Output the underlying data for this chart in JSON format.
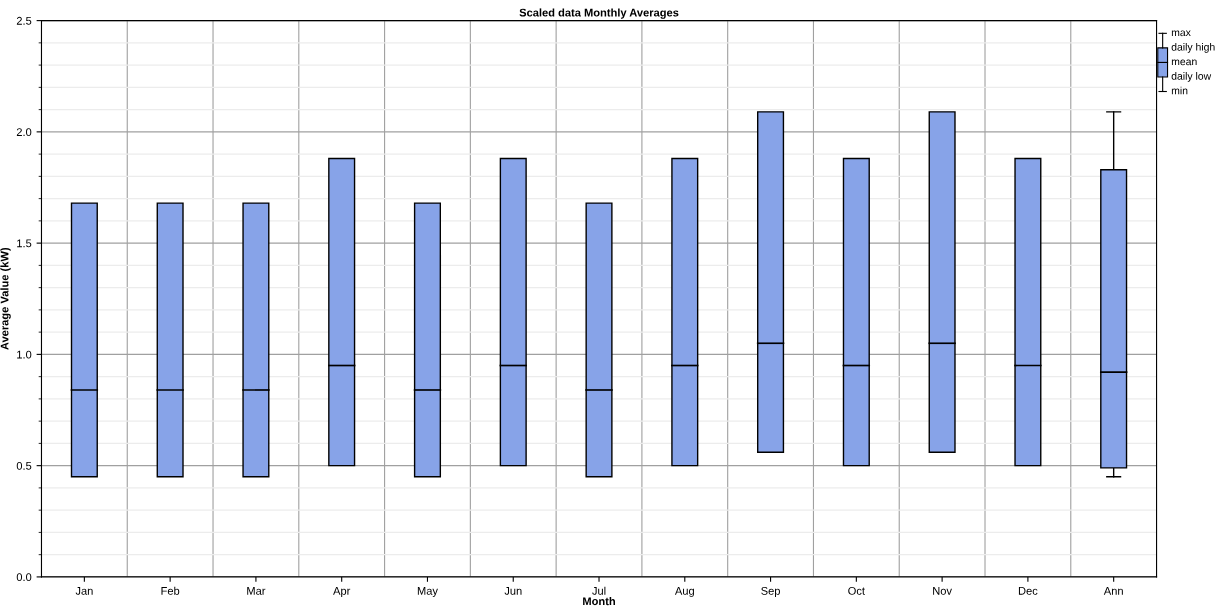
{
  "chart_data": {
    "type": "box",
    "title": "Scaled data Monthly Averages",
    "xlabel": "Month",
    "ylabel": "Average Value (kW)",
    "categories": [
      "Jan",
      "Feb",
      "Mar",
      "Apr",
      "May",
      "Jun",
      "Jul",
      "Aug",
      "Sep",
      "Oct",
      "Nov",
      "Dec",
      "Ann"
    ],
    "color": "#87a3e8",
    "boxes": [
      {
        "low": 0.45,
        "q1": 0.45,
        "mean": 0.84,
        "q3": 1.68,
        "high": 1.68
      },
      {
        "low": 0.45,
        "q1": 0.45,
        "mean": 0.84,
        "q3": 1.68,
        "high": 1.68
      },
      {
        "low": 0.45,
        "q1": 0.45,
        "mean": 0.84,
        "q3": 1.68,
        "high": 1.68
      },
      {
        "low": 0.5,
        "q1": 0.5,
        "mean": 0.95,
        "q3": 1.88,
        "high": 1.88
      },
      {
        "low": 0.45,
        "q1": 0.45,
        "mean": 0.84,
        "q3": 1.68,
        "high": 1.68
      },
      {
        "low": 0.5,
        "q1": 0.5,
        "mean": 0.95,
        "q3": 1.88,
        "high": 1.88
      },
      {
        "low": 0.45,
        "q1": 0.45,
        "mean": 0.84,
        "q3": 1.68,
        "high": 1.68
      },
      {
        "low": 0.5,
        "q1": 0.5,
        "mean": 0.95,
        "q3": 1.88,
        "high": 1.88
      },
      {
        "low": 0.56,
        "q1": 0.56,
        "mean": 1.05,
        "q3": 2.09,
        "high": 2.09
      },
      {
        "low": 0.5,
        "q1": 0.5,
        "mean": 0.95,
        "q3": 1.88,
        "high": 1.88
      },
      {
        "low": 0.56,
        "q1": 0.56,
        "mean": 1.05,
        "q3": 2.09,
        "high": 2.09
      },
      {
        "low": 0.5,
        "q1": 0.5,
        "mean": 0.95,
        "q3": 1.88,
        "high": 1.88
      },
      {
        "low": 0.45,
        "q1": 0.49,
        "mean": 0.92,
        "q3": 1.83,
        "high": 2.09
      }
    ],
    "ylim": [
      0,
      2.5
    ],
    "yticks": [
      {
        "value": 0,
        "label": "0.0"
      },
      0.5,
      {
        "value": 1,
        "label": "1.0"
      },
      1.5,
      {
        "value": 2,
        "label": "2.0"
      },
      2.5
    ],
    "grid": true,
    "annotations": [
      "max",
      "daily high",
      "mean",
      "daily low",
      "min"
    ]
  }
}
